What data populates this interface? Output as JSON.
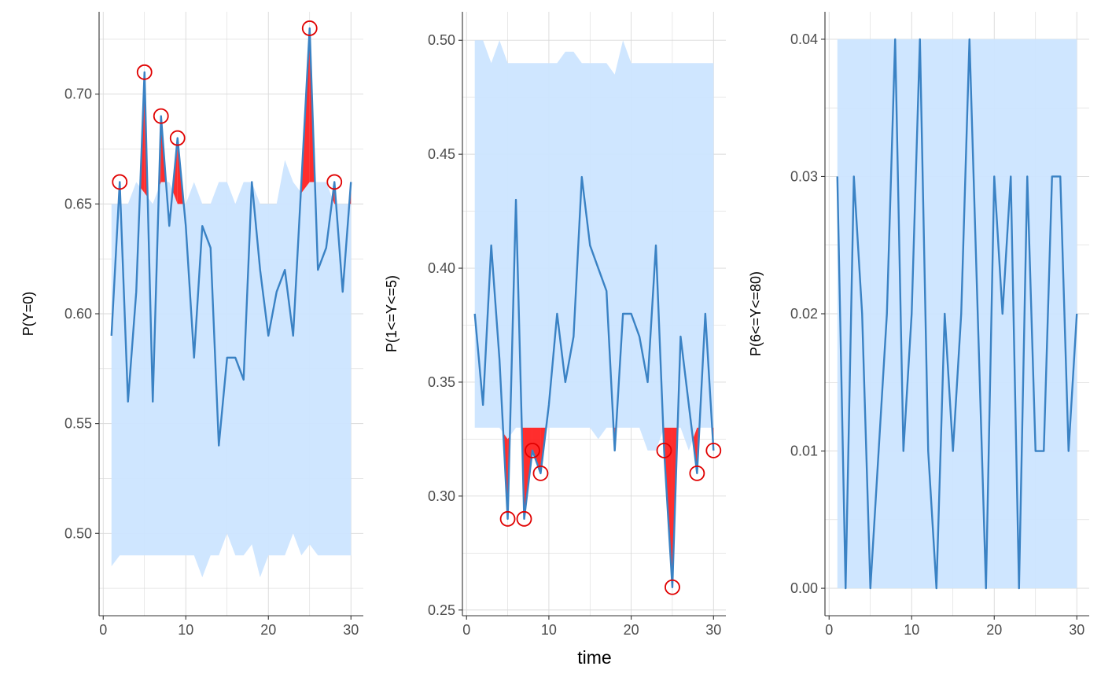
{
  "xlabel": "time",
  "colors": {
    "band": "#cce5ff",
    "line": "#3a82c4",
    "exceed": "#ff2222",
    "marker": "#e00000",
    "grid": "#d9d9d9",
    "axis": "#333333"
  },
  "chart_data": [
    {
      "type": "line",
      "ylabel": "P(Y=0)",
      "xlim": [
        -0.5,
        31.5
      ],
      "ylim": [
        0.4625,
        0.7375
      ],
      "xticks": [
        0,
        10,
        20,
        30
      ],
      "xtick_labels": [
        "0",
        "10",
        "20",
        "30"
      ],
      "yticks": [
        0.5,
        0.55,
        0.6,
        0.65,
        0.7
      ],
      "ytick_labels": [
        "0.50",
        "0.55",
        "0.60",
        "0.65",
        "0.70"
      ],
      "x": [
        1,
        2,
        3,
        4,
        5,
        6,
        7,
        8,
        9,
        10,
        11,
        12,
        13,
        14,
        15,
        16,
        17,
        18,
        19,
        20,
        21,
        22,
        23,
        24,
        25,
        26,
        27,
        28,
        29,
        30
      ],
      "values": [
        0.59,
        0.66,
        0.56,
        0.61,
        0.71,
        0.56,
        0.69,
        0.64,
        0.68,
        0.64,
        0.58,
        0.64,
        0.63,
        0.54,
        0.58,
        0.58,
        0.57,
        0.66,
        0.62,
        0.59,
        0.61,
        0.62,
        0.59,
        0.66,
        0.73,
        0.62,
        0.63,
        0.66,
        0.61,
        0.66
      ],
      "band_lower": [
        0.485,
        0.49,
        0.49,
        0.49,
        0.49,
        0.49,
        0.49,
        0.49,
        0.49,
        0.49,
        0.49,
        0.48,
        0.49,
        0.49,
        0.5,
        0.49,
        0.49,
        0.495,
        0.48,
        0.49,
        0.49,
        0.49,
        0.5,
        0.49,
        0.495,
        0.49,
        0.49,
        0.49,
        0.49,
        0.49
      ],
      "band_upper": [
        0.65,
        0.65,
        0.65,
        0.66,
        0.655,
        0.65,
        0.66,
        0.66,
        0.65,
        0.65,
        0.66,
        0.65,
        0.65,
        0.66,
        0.66,
        0.65,
        0.66,
        0.66,
        0.65,
        0.65,
        0.65,
        0.67,
        0.66,
        0.655,
        0.66,
        0.66,
        0.66,
        0.65,
        0.65,
        0.65
      ],
      "flagged": [
        {
          "x": 2,
          "y": 0.66
        },
        {
          "x": 5,
          "y": 0.71
        },
        {
          "x": 7,
          "y": 0.69
        },
        {
          "x": 9,
          "y": 0.68
        },
        {
          "x": 25,
          "y": 0.73
        },
        {
          "x": 28,
          "y": 0.66
        }
      ]
    },
    {
      "type": "line",
      "ylabel": "P(1<=Y<=5)",
      "xlim": [
        -0.5,
        31.5
      ],
      "ylim": [
        0.2475,
        0.5125
      ],
      "xticks": [
        0,
        10,
        20,
        30
      ],
      "xtick_labels": [
        "0",
        "10",
        "20",
        "30"
      ],
      "yticks": [
        0.25,
        0.3,
        0.35,
        0.4,
        0.45,
        0.5
      ],
      "ytick_labels": [
        "0.25",
        "0.30",
        "0.35",
        "0.40",
        "0.45",
        "0.50"
      ],
      "x": [
        1,
        2,
        3,
        4,
        5,
        6,
        7,
        8,
        9,
        10,
        11,
        12,
        13,
        14,
        15,
        16,
        17,
        18,
        19,
        20,
        21,
        22,
        23,
        24,
        25,
        26,
        27,
        28,
        29,
        30
      ],
      "values": [
        0.38,
        0.34,
        0.41,
        0.36,
        0.29,
        0.43,
        0.29,
        0.32,
        0.31,
        0.34,
        0.38,
        0.35,
        0.37,
        0.44,
        0.41,
        0.4,
        0.39,
        0.32,
        0.38,
        0.38,
        0.37,
        0.35,
        0.41,
        0.32,
        0.26,
        0.37,
        0.34,
        0.31,
        0.38,
        0.32
      ],
      "band_lower": [
        0.33,
        0.33,
        0.33,
        0.33,
        0.325,
        0.33,
        0.33,
        0.33,
        0.33,
        0.33,
        0.33,
        0.33,
        0.33,
        0.33,
        0.33,
        0.325,
        0.33,
        0.33,
        0.33,
        0.33,
        0.33,
        0.32,
        0.32,
        0.33,
        0.33,
        0.33,
        0.32,
        0.33,
        0.33,
        0.33
      ],
      "band_upper": [
        0.5,
        0.5,
        0.49,
        0.5,
        0.49,
        0.49,
        0.49,
        0.49,
        0.49,
        0.49,
        0.49,
        0.495,
        0.495,
        0.49,
        0.49,
        0.49,
        0.49,
        0.485,
        0.5,
        0.49,
        0.49,
        0.49,
        0.49,
        0.49,
        0.49,
        0.49,
        0.49,
        0.49,
        0.49,
        0.49
      ],
      "flagged": [
        {
          "x": 5,
          "y": 0.29
        },
        {
          "x": 7,
          "y": 0.29
        },
        {
          "x": 8,
          "y": 0.32
        },
        {
          "x": 9,
          "y": 0.31
        },
        {
          "x": 24,
          "y": 0.32
        },
        {
          "x": 25,
          "y": 0.26
        },
        {
          "x": 28,
          "y": 0.31
        },
        {
          "x": 30,
          "y": 0.32
        }
      ]
    },
    {
      "type": "line",
      "ylabel": "P(6<=Y<=80)",
      "xlim": [
        -0.5,
        31.5
      ],
      "ylim": [
        -0.002,
        0.042
      ],
      "xticks": [
        0,
        10,
        20,
        30
      ],
      "xtick_labels": [
        "0",
        "10",
        "20",
        "30"
      ],
      "yticks": [
        0,
        0.01,
        0.02,
        0.03,
        0.04
      ],
      "ytick_labels": [
        "0.00",
        "0.01",
        "0.02",
        "0.03",
        "0.04"
      ],
      "x": [
        1,
        2,
        3,
        4,
        5,
        6,
        7,
        8,
        9,
        10,
        11,
        12,
        13,
        14,
        15,
        16,
        17,
        18,
        19,
        20,
        21,
        22,
        23,
        24,
        25,
        26,
        27,
        28,
        29,
        30
      ],
      "values": [
        0.03,
        0,
        0.03,
        0.02,
        0,
        0.01,
        0.02,
        0.04,
        0.01,
        0.02,
        0.04,
        0.01,
        0,
        0.02,
        0.01,
        0.02,
        0.04,
        0.02,
        0,
        0.03,
        0.02,
        0.03,
        0,
        0.03,
        0.01,
        0.01,
        0.03,
        0.03,
        0.01,
        0.02
      ],
      "band_lower": [
        0,
        0,
        0,
        0,
        0,
        0,
        0,
        0,
        0,
        0,
        0,
        0,
        0,
        0,
        0,
        0,
        0,
        0,
        0,
        0,
        0,
        0,
        0,
        0,
        0,
        0,
        0,
        0,
        0,
        0
      ],
      "band_upper": [
        0.04,
        0.04,
        0.04,
        0.04,
        0.04,
        0.04,
        0.04,
        0.04,
        0.04,
        0.04,
        0.04,
        0.04,
        0.04,
        0.04,
        0.04,
        0.04,
        0.04,
        0.04,
        0.04,
        0.04,
        0.04,
        0.04,
        0.04,
        0.04,
        0.04,
        0.04,
        0.04,
        0.04,
        0.04,
        0.04
      ],
      "flagged": []
    }
  ]
}
